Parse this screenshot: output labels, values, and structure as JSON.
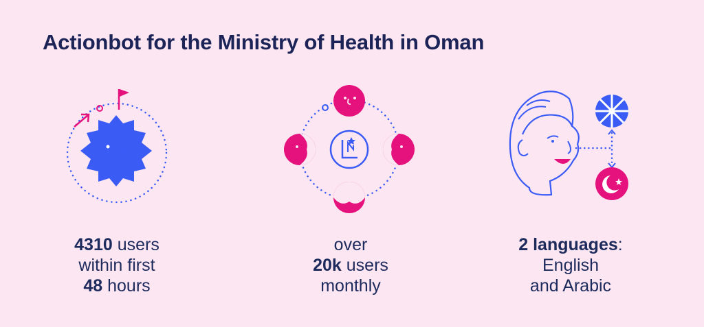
{
  "header": {
    "title": "Actionbot for the Ministry of Health in Oman"
  },
  "stats": [
    {
      "strong": "4310",
      "rest": " users",
      "line2": "within first",
      "line3_strong": "48",
      "line3_rest": " hours"
    },
    {
      "line1": "over",
      "strong": "20k",
      "rest": " users",
      "line3": "monthly"
    },
    {
      "strong": "2 languages",
      "rest": ":",
      "line2": "English",
      "line3": "and Arabic"
    }
  ],
  "colors": {
    "background": "#fbe6f2",
    "navy": "#1b2357",
    "blue": "#3b5bf5",
    "magenta": "#e5127d"
  },
  "icons": {
    "stat1": "sun-moon-icon",
    "stat2": "chart-cycle-icon",
    "stat3": "face-language-icon"
  }
}
